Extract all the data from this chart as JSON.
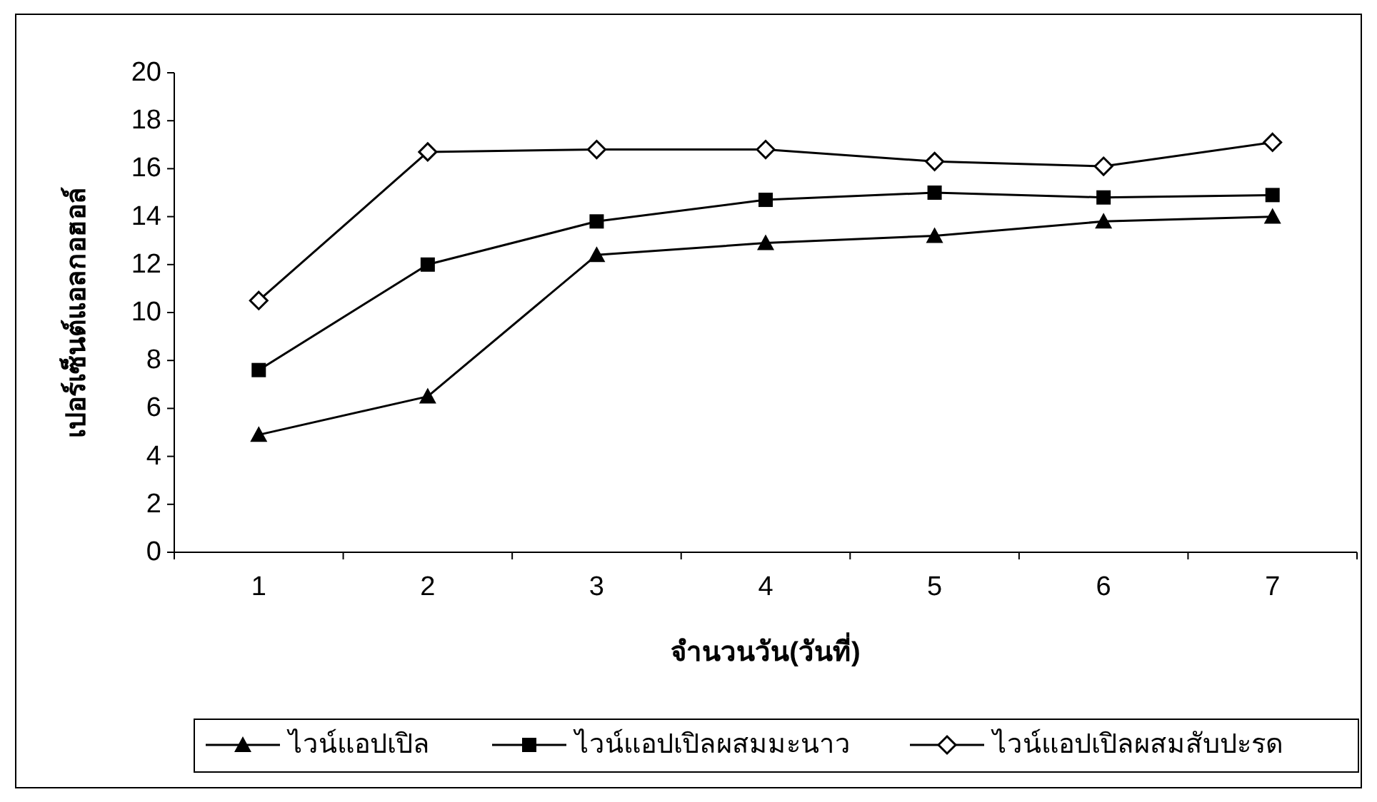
{
  "chart_data": {
    "type": "line",
    "xlabel": "จำนวนวัน(วันที่)",
    "ylabel": "เปอร์เซ็นต์แอลกอฮอล์",
    "categories": [
      "1",
      "2",
      "3",
      "4",
      "5",
      "6",
      "7"
    ],
    "ylim": [
      0,
      20
    ],
    "yticks": [
      0,
      2,
      4,
      6,
      8,
      10,
      12,
      14,
      16,
      18,
      20
    ],
    "grid": false,
    "legend": "bottom",
    "line_style": "solid",
    "series": [
      {
        "name": "ไวน์แอปเปิล",
        "color": "#000000",
        "marker": "triangle",
        "values": [
          4.9,
          6.5,
          12.4,
          12.9,
          13.2,
          13.8,
          14.0
        ]
      },
      {
        "name": "ไวน์แอปเปิลผสมมะนาว",
        "color": "#000000",
        "marker": "square",
        "values": [
          7.6,
          12.0,
          13.8,
          14.7,
          15.0,
          14.8,
          14.9
        ]
      },
      {
        "name": "ไวน์แอปเปิลผสมสับปะรด",
        "color": "#000000",
        "marker": "diamond",
        "values": [
          10.5,
          16.7,
          16.8,
          16.8,
          16.3,
          16.1,
          17.1
        ]
      }
    ]
  }
}
